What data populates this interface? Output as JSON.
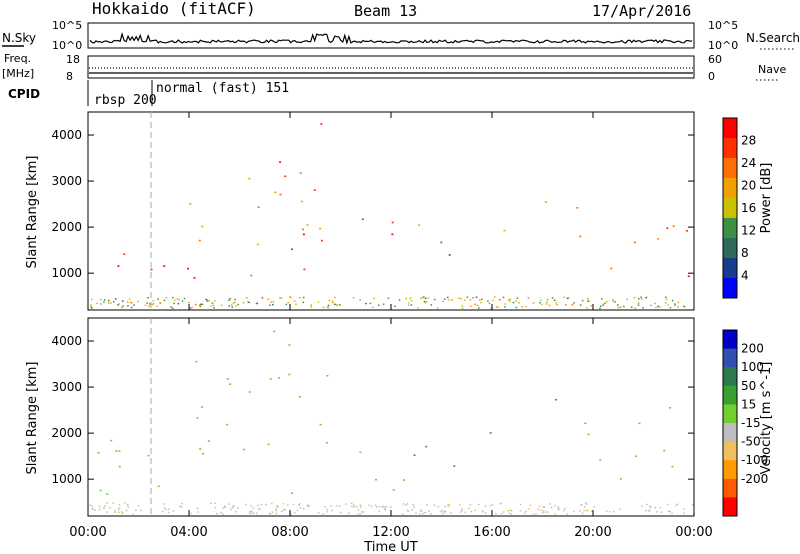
{
  "header": {
    "station": "Hokkaido (fitACF)",
    "beam": "Beam 13",
    "date": "17/Apr/2016"
  },
  "left_labels": {
    "nsky": "N.Sky",
    "freq": "Freq.",
    "freq_unit": "[MHz]",
    "cpid": "CPID"
  },
  "right_labels": {
    "nsearch": "N.Search",
    "nave": "Nave"
  },
  "top_axis_ticks": {
    "noise_left": [
      "10^5",
      "10^0"
    ],
    "noise_right": [
      "10^5",
      "10^0"
    ],
    "freq_left": [
      "18",
      "8"
    ],
    "nave_right": [
      "60",
      "0"
    ]
  },
  "cpid_labels": [
    "rbsp 200",
    "normal (fast) 151"
  ],
  "colors": {
    "power_scale": [
      "#0000ff",
      "#1a3c8c",
      "#2e6b5a",
      "#3f8f44",
      "#c8c000",
      "#f0a000",
      "#ff7000",
      "#ff3000",
      "#ff0000"
    ],
    "velocity_scale": [
      "#0000c8",
      "#3050b0",
      "#2e7a50",
      "#39a030",
      "#70d030",
      "#bebebe",
      "#f0c060",
      "#ff9a00",
      "#ff5a00",
      "#ff0000"
    ]
  },
  "chart_data": [
    {
      "type": "heatmap",
      "panel": "power",
      "ylabel": "Slant Range [km]",
      "ylim": [
        200,
        4500
      ],
      "y_ticks": [
        1000,
        2000,
        3000,
        4000
      ],
      "xlim_hours": [
        0,
        24
      ],
      "colorbar_label": "Power [dB]",
      "colorbar_ticks": [
        4,
        8,
        12,
        16,
        20,
        24,
        28
      ],
      "colorbar_range": [
        0,
        32
      ],
      "regions": [
        {
          "t0": 0.0,
          "t1": 2.0,
          "r0": 600,
          "r1": 1700,
          "value": 26
        },
        {
          "t0": 2.0,
          "t1": 10.5,
          "r0": 800,
          "r1": 1900,
          "value": 27
        },
        {
          "t0": 4.0,
          "t1": 9.5,
          "r0": 1600,
          "r1": 3200,
          "value": 20
        },
        {
          "t0": 6.5,
          "t1": 9.5,
          "r0": 2400,
          "r1": 4300,
          "value": 28
        },
        {
          "t0": 10.5,
          "t1": 12.5,
          "r0": 1300,
          "r1": 2600,
          "value": 27
        },
        {
          "t0": 12.7,
          "t1": 16.5,
          "r0": 1200,
          "r1": 2100,
          "value": 14
        },
        {
          "t0": 17.5,
          "t1": 18.5,
          "r0": 2500,
          "r1": 3000,
          "value": 24
        },
        {
          "t0": 19.0,
          "t1": 24.0,
          "r0": 900,
          "r1": 2600,
          "value": 24
        }
      ]
    },
    {
      "type": "heatmap",
      "panel": "velocity",
      "ylabel": "Slant Range [km]",
      "ylim": [
        200,
        4500
      ],
      "y_ticks": [
        1000,
        2000,
        3000,
        4000
      ],
      "xlabel": "Time UT",
      "x_ticks": [
        "00:00",
        "04:00",
        "08:00",
        "12:00",
        "16:00",
        "20:00",
        "00:00"
      ],
      "xlim_hours": [
        0,
        24
      ],
      "colorbar_label": "Velocity [m s^-1]",
      "colorbar_ticks": [
        200,
        100,
        50,
        15,
        -15,
        -50,
        -100,
        -200
      ],
      "regions": [
        {
          "t0": 0.0,
          "t1": 12.5,
          "r0": 600,
          "r1": 1900,
          "value": -10
        },
        {
          "t0": 4.0,
          "t1": 9.5,
          "r0": 1600,
          "r1": 4300,
          "value": -5
        },
        {
          "t0": 12.7,
          "t1": 16.5,
          "r0": 1200,
          "r1": 2100,
          "value": 40
        },
        {
          "t0": 17.5,
          "t1": 18.5,
          "r0": 2500,
          "r1": 3000,
          "value": 20
        },
        {
          "t0": 19.0,
          "t1": 24.0,
          "r0": 900,
          "r1": 2600,
          "value": -5
        }
      ]
    }
  ]
}
